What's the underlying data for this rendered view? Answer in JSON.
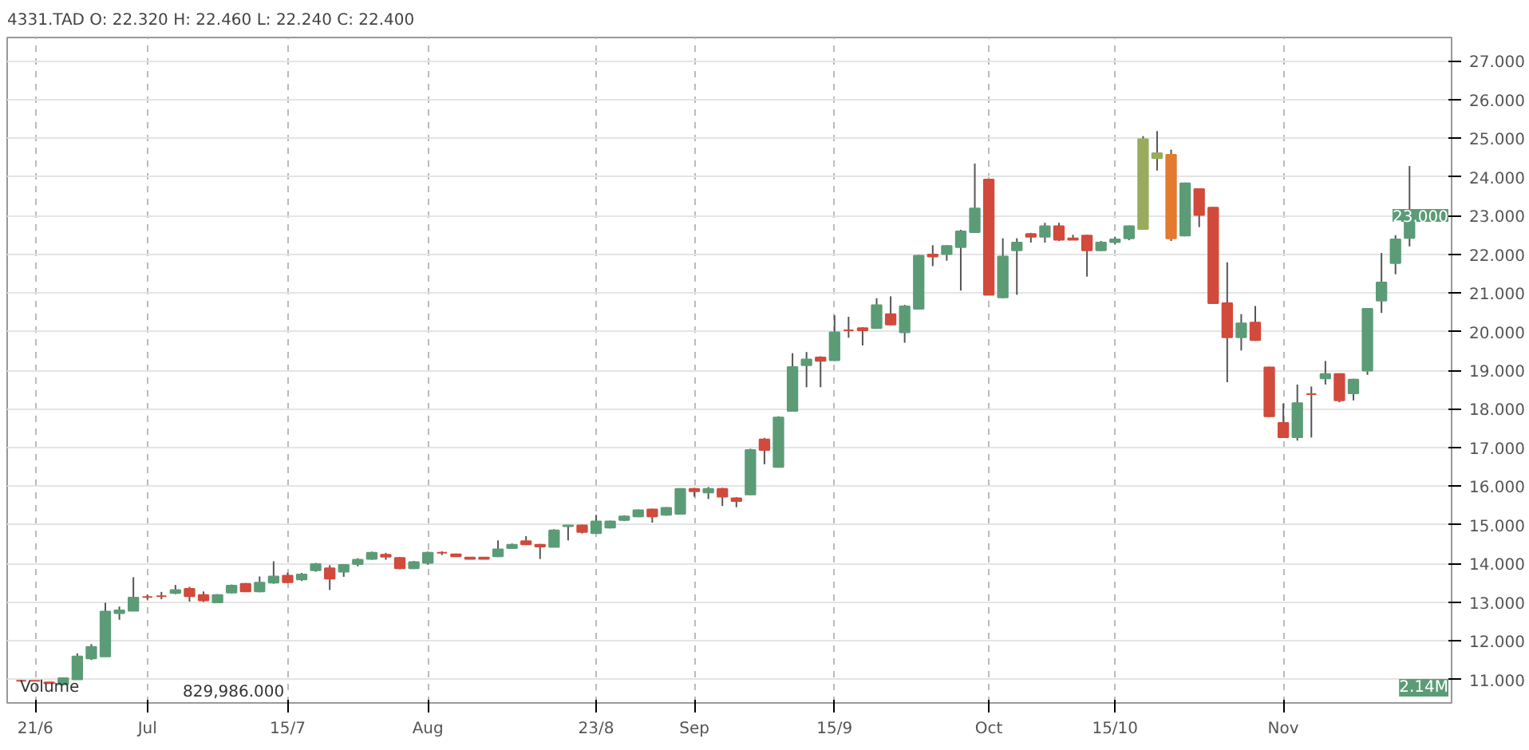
{
  "chart_data": {
    "type": "candlestick",
    "title": "4331.TAD   O: 22.320  H: 22.460  L: 22.240  C: 22.400",
    "categories": [
      null,
      "21/6",
      null,
      null,
      null,
      null,
      null,
      null,
      null,
      "Jul",
      null,
      null,
      null,
      null,
      null,
      null,
      null,
      null,
      null,
      "15/7",
      null,
      null,
      null,
      null,
      null,
      null,
      null,
      null,
      null,
      "Aug",
      null,
      null,
      null,
      null,
      null,
      null,
      null,
      null,
      null,
      null,
      null,
      "23/8",
      null,
      null,
      null,
      null,
      null,
      null,
      "Sep",
      null,
      null,
      null,
      null,
      null,
      null,
      null,
      null,
      null,
      "15/9",
      null,
      null,
      null,
      null,
      null,
      null,
      null,
      null,
      null,
      null,
      "Oct",
      null,
      null,
      null,
      null,
      null,
      null,
      null,
      null,
      "15/10",
      null,
      null,
      null,
      null,
      null,
      null,
      null,
      null,
      null,
      null,
      null,
      "Nov",
      null,
      null,
      null,
      null,
      null,
      null,
      null,
      null,
      null
    ],
    "ohlc": [
      [
        10.97,
        10.98,
        10.96,
        10.97
      ],
      [
        10.97,
        10.98,
        10.96,
        10.97
      ],
      [
        10.93,
        10.94,
        10.9,
        10.91
      ],
      [
        10.88,
        11.06,
        10.86,
        11.04
      ],
      [
        11.01,
        11.68,
        11.0,
        11.6
      ],
      [
        11.55,
        11.92,
        11.51,
        11.85
      ],
      [
        11.6,
        12.99,
        11.6,
        12.76
      ],
      [
        12.72,
        12.89,
        12.55,
        12.79
      ],
      [
        12.78,
        13.65,
        12.78,
        13.12
      ],
      [
        13.14,
        13.2,
        13.07,
        13.14
      ],
      [
        13.16,
        13.27,
        13.08,
        13.16
      ],
      [
        13.24,
        13.45,
        13.21,
        13.32
      ],
      [
        13.35,
        13.4,
        13.02,
        13.16
      ],
      [
        13.19,
        13.28,
        13.01,
        13.05
      ],
      [
        13.0,
        13.21,
        12.98,
        13.19
      ],
      [
        13.25,
        13.46,
        13.23,
        13.43
      ],
      [
        13.48,
        13.5,
        13.28,
        13.28
      ],
      [
        13.28,
        13.67,
        13.26,
        13.51
      ],
      [
        13.51,
        14.06,
        13.48,
        13.67
      ],
      [
        13.69,
        13.77,
        13.5,
        13.52
      ],
      [
        13.59,
        13.76,
        13.55,
        13.72
      ],
      [
        13.83,
        14.02,
        13.79,
        13.99
      ],
      [
        13.88,
        13.96,
        13.32,
        13.61
      ],
      [
        13.79,
        13.99,
        13.66,
        13.97
      ],
      [
        13.99,
        14.14,
        13.93,
        14.1
      ],
      [
        14.12,
        14.31,
        14.1,
        14.28
      ],
      [
        14.23,
        14.28,
        14.1,
        14.18
      ],
      [
        14.15,
        14.17,
        13.86,
        13.88
      ],
      [
        13.88,
        14.07,
        13.86,
        14.04
      ],
      [
        14.02,
        14.31,
        13.97,
        14.28
      ],
      [
        14.28,
        14.32,
        14.22,
        14.28
      ],
      [
        14.24,
        14.26,
        14.17,
        14.19
      ],
      [
        14.16,
        14.17,
        14.11,
        14.12
      ],
      [
        14.16,
        14.17,
        14.11,
        14.12
      ],
      [
        14.19,
        14.6,
        14.17,
        14.37
      ],
      [
        14.4,
        14.52,
        14.38,
        14.49
      ],
      [
        14.58,
        14.71,
        14.48,
        14.5
      ],
      [
        14.49,
        14.51,
        14.12,
        14.44
      ],
      [
        14.43,
        14.89,
        14.42,
        14.86
      ],
      [
        14.97,
        15.0,
        14.6,
        14.99
      ],
      [
        14.99,
        15.01,
        14.78,
        14.82
      ],
      [
        14.79,
        15.26,
        14.77,
        15.09
      ],
      [
        14.93,
        15.11,
        14.91,
        15.09
      ],
      [
        15.13,
        15.25,
        15.1,
        15.22
      ],
      [
        15.22,
        15.4,
        15.2,
        15.38
      ],
      [
        15.4,
        15.42,
        15.06,
        15.22
      ],
      [
        15.26,
        15.46,
        15.24,
        15.44
      ],
      [
        15.29,
        15.95,
        15.27,
        15.93
      ],
      [
        15.93,
        15.96,
        15.73,
        15.87
      ],
      [
        15.84,
        15.98,
        15.67,
        15.93
      ],
      [
        15.93,
        15.96,
        15.49,
        15.73
      ],
      [
        15.69,
        15.72,
        15.46,
        15.62
      ],
      [
        15.79,
        16.97,
        15.77,
        16.94
      ],
      [
        17.21,
        17.25,
        16.57,
        16.94
      ],
      [
        16.5,
        17.81,
        16.48,
        17.78
      ],
      [
        17.95,
        19.44,
        17.93,
        19.08
      ],
      [
        19.13,
        19.47,
        18.56,
        19.28
      ],
      [
        19.33,
        19.36,
        18.56,
        19.24
      ],
      [
        19.26,
        20.42,
        19.24,
        19.98
      ],
      [
        20.03,
        20.38,
        19.84,
        20.03
      ],
      [
        20.09,
        20.11,
        19.64,
        20.03
      ],
      [
        20.09,
        20.86,
        20.07,
        20.68
      ],
      [
        20.45,
        20.91,
        20.16,
        20.18
      ],
      [
        19.98,
        20.69,
        19.71,
        20.65
      ],
      [
        20.59,
        21.98,
        20.57,
        21.96
      ],
      [
        21.99,
        22.23,
        21.69,
        21.94
      ],
      [
        22.0,
        22.23,
        21.83,
        22.21
      ],
      [
        22.18,
        22.63,
        21.06,
        22.59
      ],
      [
        22.57,
        24.34,
        22.55,
        23.18
      ],
      [
        23.93,
        23.95,
        20.95,
        20.95
      ],
      [
        20.88,
        22.41,
        20.86,
        21.94
      ],
      [
        22.1,
        22.41,
        20.95,
        22.3
      ],
      [
        22.52,
        22.55,
        22.3,
        22.45
      ],
      [
        22.45,
        22.81,
        22.3,
        22.72
      ],
      [
        22.72,
        22.81,
        22.34,
        22.37
      ],
      [
        22.41,
        22.5,
        22.37,
        22.37
      ],
      [
        22.48,
        22.5,
        21.42,
        22.1
      ],
      [
        22.1,
        22.34,
        22.08,
        22.3
      ],
      [
        22.31,
        22.45,
        22.25,
        22.38
      ],
      [
        22.41,
        22.74,
        22.36,
        22.72
      ],
      [
        22.65,
        25.05,
        22.63,
        24.97
      ],
      [
        24.48,
        25.18,
        24.16,
        24.61
      ],
      [
        24.57,
        24.7,
        22.34,
        22.41
      ],
      [
        22.48,
        23.85,
        22.46,
        23.83
      ],
      [
        23.68,
        23.7,
        22.7,
        23.01
      ],
      [
        23.2,
        23.22,
        20.73,
        20.73
      ],
      [
        20.73,
        21.79,
        18.69,
        19.85
      ],
      [
        19.85,
        20.45,
        19.51,
        20.21
      ],
      [
        20.23,
        20.66,
        19.76,
        19.78
      ],
      [
        19.07,
        19.09,
        17.79,
        17.81
      ],
      [
        17.64,
        18.14,
        17.25,
        17.27
      ],
      [
        17.27,
        18.63,
        17.18,
        18.15
      ],
      [
        18.38,
        18.58,
        17.26,
        18.38
      ],
      [
        18.79,
        19.24,
        18.63,
        18.9
      ],
      [
        18.9,
        18.92,
        18.17,
        18.22
      ],
      [
        18.4,
        18.78,
        18.22,
        18.76
      ],
      [
        18.99,
        20.59,
        18.88,
        20.59
      ],
      [
        20.8,
        22.03,
        20.48,
        21.27
      ],
      [
        21.77,
        22.49,
        21.48,
        22.38
      ],
      [
        22.42,
        24.28,
        22.2,
        23.01
      ]
    ],
    "colors": [
      "#d24a3b",
      "#d24a3b",
      "#d24a3b",
      "#5b9c77",
      "#5b9c77",
      "#5b9c77",
      "#5b9c77",
      "#5b9c77",
      "#5b9c77",
      "#d24a3b",
      "#d24a3b",
      "#5b9c77",
      "#d24a3b",
      "#d24a3b",
      "#5b9c77",
      "#5b9c77",
      "#d24a3b",
      "#5b9c77",
      "#5b9c77",
      "#d24a3b",
      "#5b9c77",
      "#5b9c77",
      "#d24a3b",
      "#5b9c77",
      "#5b9c77",
      "#5b9c77",
      "#d24a3b",
      "#d24a3b",
      "#5b9c77",
      "#5b9c77",
      "#d24a3b",
      "#d24a3b",
      "#d24a3b",
      "#d24a3b",
      "#5b9c77",
      "#5b9c77",
      "#d24a3b",
      "#d24a3b",
      "#5b9c77",
      "#5b9c77",
      "#d24a3b",
      "#5b9c77",
      "#5b9c77",
      "#5b9c77",
      "#5b9c77",
      "#d24a3b",
      "#5b9c77",
      "#5b9c77",
      "#d24a3b",
      "#5b9c77",
      "#d24a3b",
      "#d24a3b",
      "#5b9c77",
      "#d24a3b",
      "#5b9c77",
      "#5b9c77",
      "#5b9c77",
      "#d24a3b",
      "#5b9c77",
      "#d24a3b",
      "#d24a3b",
      "#5b9c77",
      "#d24a3b",
      "#5b9c77",
      "#5b9c77",
      "#d24a3b",
      "#5b9c77",
      "#5b9c77",
      "#5b9c77",
      "#d24a3b",
      "#5b9c77",
      "#5b9c77",
      "#d24a3b",
      "#5b9c77",
      "#d24a3b",
      "#d24a3b",
      "#d24a3b",
      "#5b9c77",
      "#5b9c77",
      "#5b9c77",
      "#9aab5e",
      "#9aab5e",
      "#e37a30",
      "#5b9c77",
      "#d24a3b",
      "#d24a3b",
      "#d24a3b",
      "#5b9c77",
      "#d24a3b",
      "#d24a3b",
      "#d24a3b",
      "#5b9c77",
      "#d24a3b",
      "#5b9c77",
      "#d24a3b",
      "#5b9c77",
      "#5b9c77",
      "#5b9c77",
      "#5b9c77",
      "#5b9c77"
    ],
    "ylim": [
      10.4,
      27.6
    ],
    "yticks": [
      {
        "value": 11,
        "label": "11.000"
      },
      {
        "value": 12,
        "label": "12.000"
      },
      {
        "value": 13,
        "label": "13.000"
      },
      {
        "value": 14,
        "label": "14.000"
      },
      {
        "value": 15,
        "label": "15.000"
      },
      {
        "value": 16,
        "label": "16.000"
      },
      {
        "value": 17,
        "label": "17.000"
      },
      {
        "value": 18,
        "label": "18.000"
      },
      {
        "value": 19,
        "label": "19.000"
      },
      {
        "value": 20,
        "label": "20.000"
      },
      {
        "value": 21,
        "label": "21.000"
      },
      {
        "value": 22,
        "label": "22.000"
      },
      {
        "value": 23,
        "label": "23.000"
      },
      {
        "value": 24,
        "label": "24.000"
      },
      {
        "value": 25,
        "label": "25.000"
      },
      {
        "value": 26,
        "label": "26.000"
      },
      {
        "value": 27,
        "label": "27.000"
      }
    ],
    "grid": true,
    "annotations": [
      "Volume",
      "829,986.000",
      "2.14M",
      {
        "text": "23.000",
        "y": 23
      }
    ]
  }
}
